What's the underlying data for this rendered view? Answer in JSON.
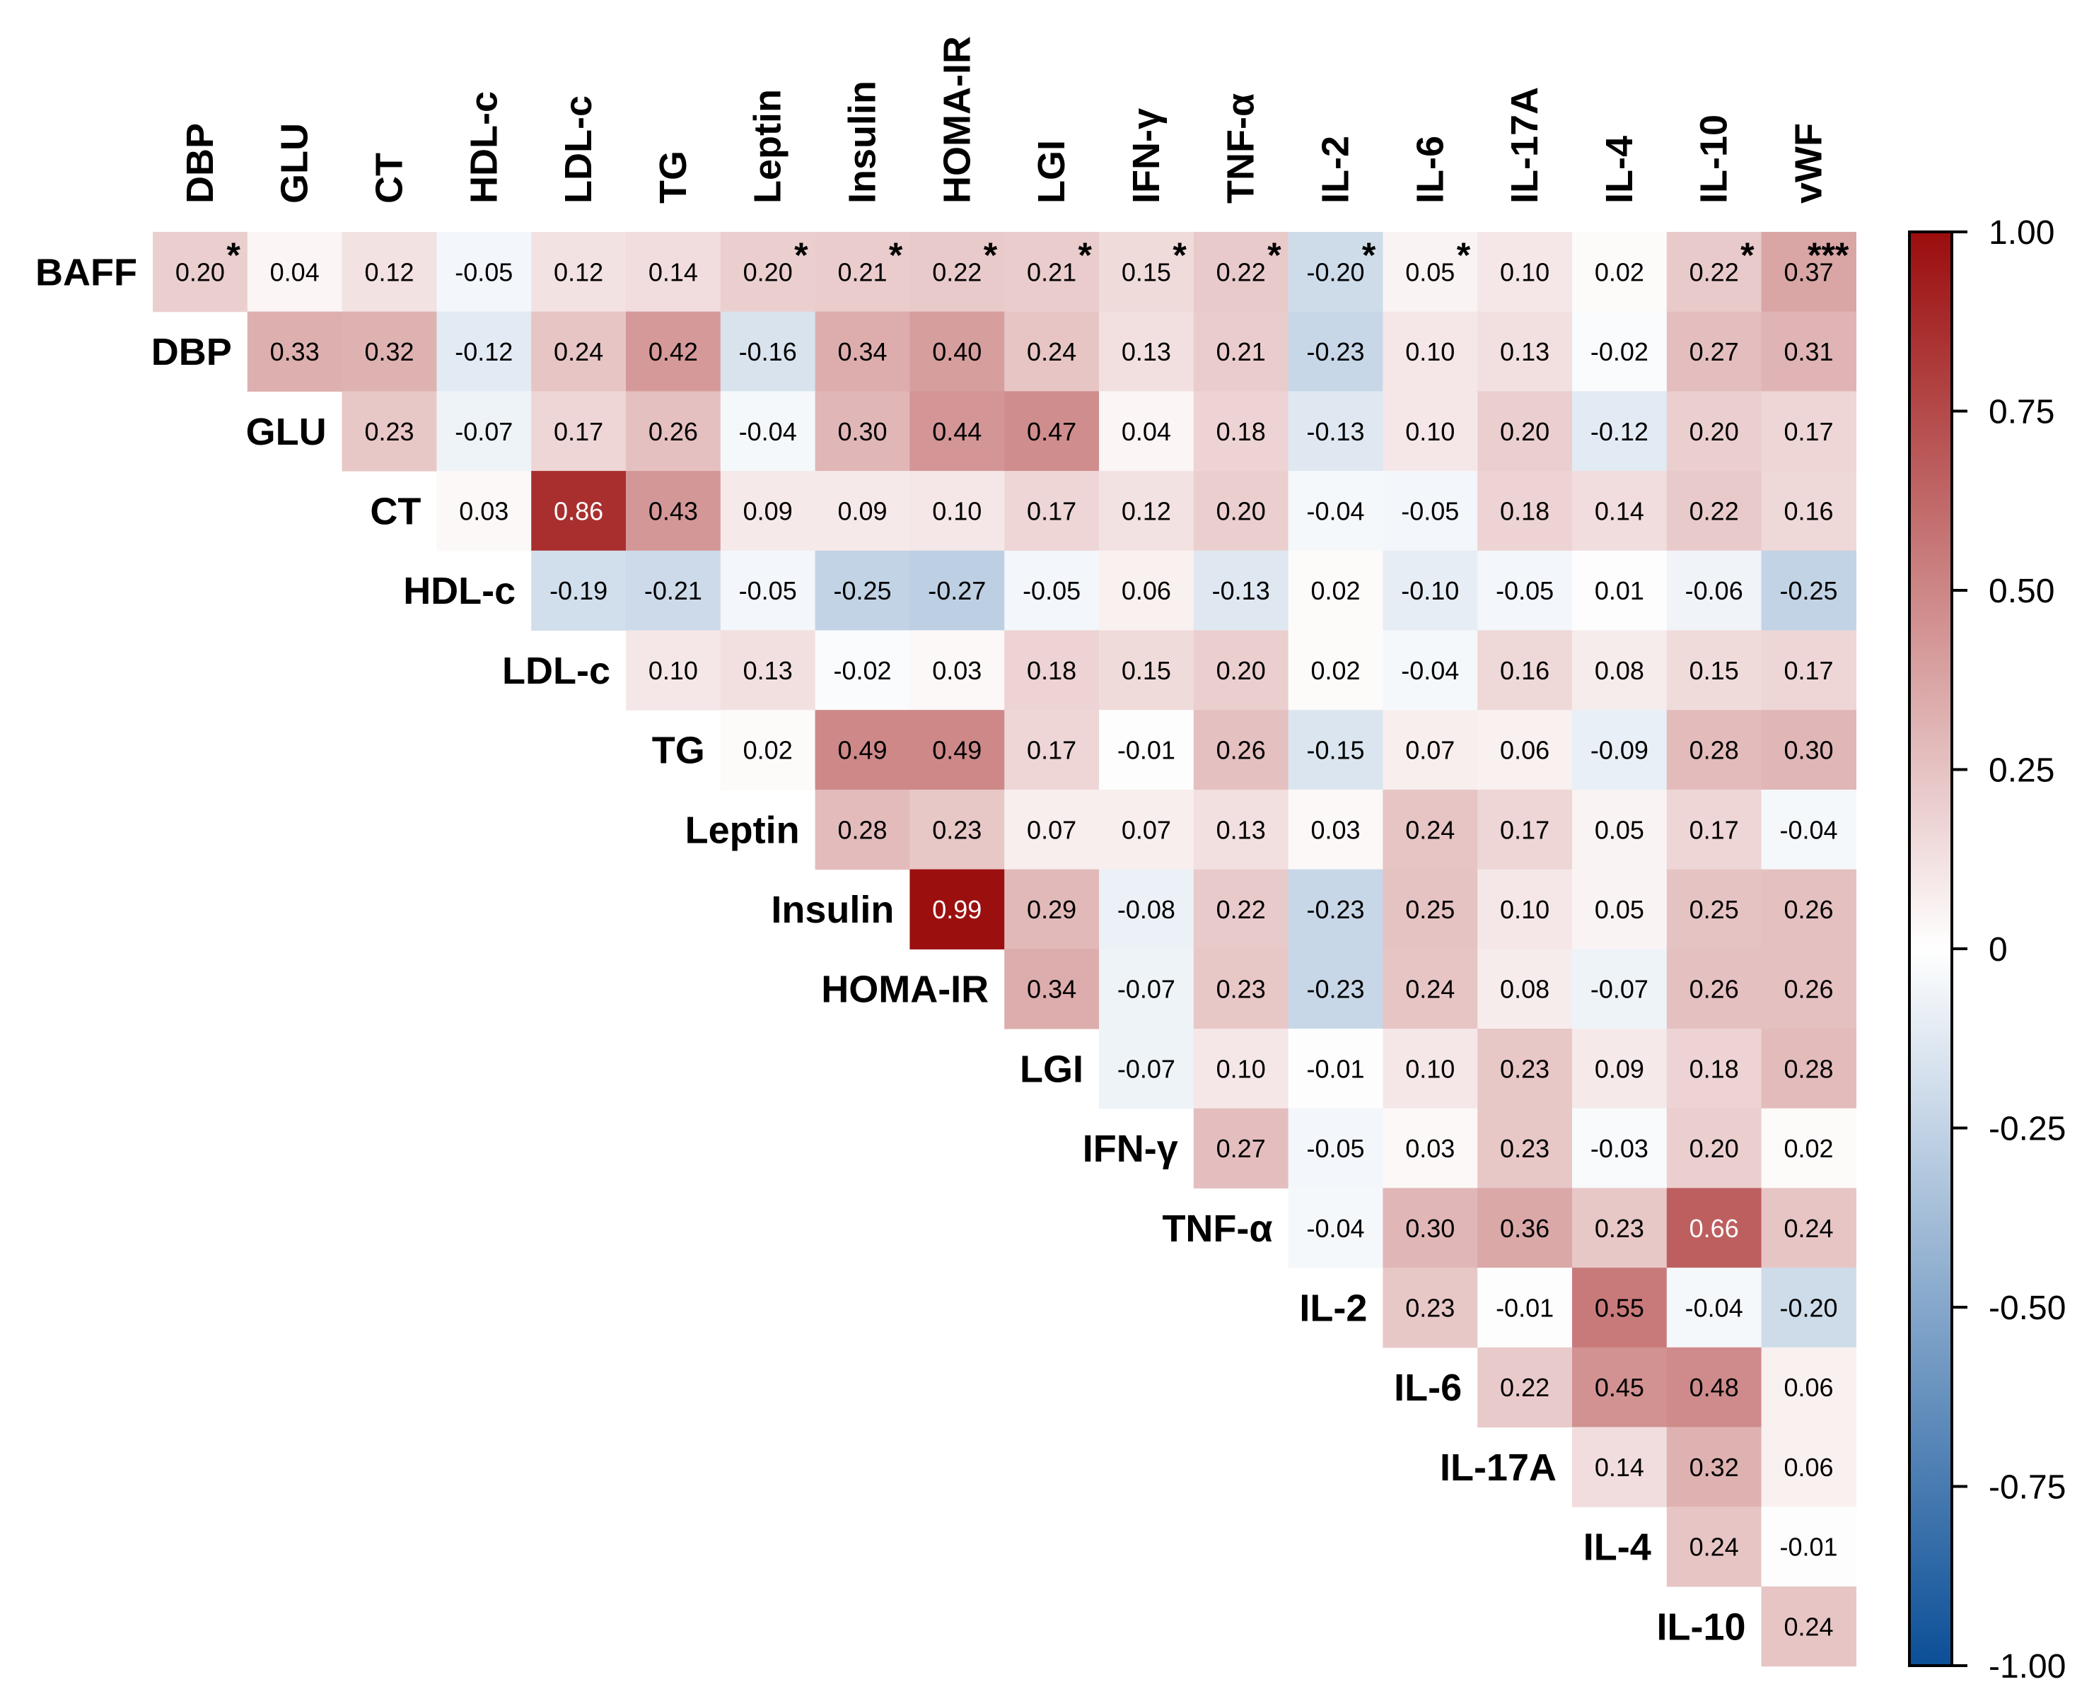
{
  "chart_data": {
    "type": "heatmap",
    "title": "",
    "columns": [
      "DBP",
      "GLU",
      "CT",
      "HDL-c",
      "LDL-c",
      "TG",
      "Leptin",
      "Insulin",
      "HOMA-IR",
      "LGI",
      "IFN-γ",
      "TNF-α",
      "IL-2",
      "IL-6",
      "IL-17A",
      "IL-4",
      "IL-10",
      "vWF"
    ],
    "rows": [
      {
        "label": "BAFF",
        "start": 0,
        "values": [
          "0.20",
          "0.04",
          "0.12",
          "-0.05",
          "0.12",
          "0.14",
          "0.20",
          "0.21",
          "0.22",
          "0.21",
          "0.15",
          "0.22",
          "-0.20",
          "0.05",
          "0.10",
          "0.02",
          "0.22",
          "0.37"
        ],
        "stars": [
          "*",
          "",
          "",
          "",
          "",
          "",
          "*",
          "*",
          "*",
          "*",
          "*",
          "*",
          "*",
          "*",
          "",
          "",
          "*",
          "***"
        ]
      },
      {
        "label": "DBP",
        "start": 1,
        "values": [
          "0.33",
          "0.32",
          "-0.12",
          "0.24",
          "0.42",
          "-0.16",
          "0.34",
          "0.40",
          "0.24",
          "0.13",
          "0.21",
          "-0.23",
          "0.10",
          "0.13",
          "-0.02",
          "0.27",
          "0.31"
        ]
      },
      {
        "label": "GLU",
        "start": 2,
        "values": [
          "0.23",
          "-0.07",
          "0.17",
          "0.26",
          "-0.04",
          "0.30",
          "0.44",
          "0.47",
          "0.04",
          "0.18",
          "-0.13",
          "0.10",
          "0.20",
          "-0.12",
          "0.20",
          "0.17"
        ]
      },
      {
        "label": "CT",
        "start": 3,
        "values": [
          "0.03",
          "0.86",
          "0.43",
          "0.09",
          "0.09",
          "0.10",
          "0.17",
          "0.12",
          "0.20",
          "-0.04",
          "-0.05",
          "0.18",
          "0.14",
          "0.22",
          "0.16"
        ]
      },
      {
        "label": "HDL-c",
        "start": 4,
        "values": [
          "-0.19",
          "-0.21",
          "-0.05",
          "-0.25",
          "-0.27",
          "-0.05",
          "0.06",
          "-0.13",
          "0.02",
          "-0.10",
          "-0.05",
          "0.01",
          "-0.06",
          "-0.25"
        ]
      },
      {
        "label": "LDL-c",
        "start": 5,
        "values": [
          "0.10",
          "0.13",
          "-0.02",
          "0.03",
          "0.18",
          "0.15",
          "0.20",
          "0.02",
          "-0.04",
          "0.16",
          "0.08",
          "0.15",
          "0.17"
        ]
      },
      {
        "label": "TG",
        "start": 6,
        "values": [
          "0.02",
          "0.49",
          "0.49",
          "0.17",
          "-0.01",
          "0.26",
          "-0.15",
          "0.07",
          "0.06",
          "-0.09",
          "0.28",
          "0.30"
        ]
      },
      {
        "label": "Leptin",
        "start": 7,
        "values": [
          "0.28",
          "0.23",
          "0.07",
          "0.07",
          "0.13",
          "0.03",
          "0.24",
          "0.17",
          "0.05",
          "0.17",
          "-0.04"
        ]
      },
      {
        "label": "Insulin",
        "start": 8,
        "values": [
          "0.99",
          "0.29",
          "-0.08",
          "0.22",
          "-0.23",
          "0.25",
          "0.10",
          "0.05",
          "0.25",
          "0.26"
        ]
      },
      {
        "label": "HOMA-IR",
        "start": 9,
        "values": [
          "0.34",
          "-0.07",
          "0.23",
          "-0.23",
          "0.24",
          "0.08",
          "-0.07",
          "0.26",
          "0.26"
        ]
      },
      {
        "label": "LGI",
        "start": 10,
        "values": [
          "-0.07",
          "0.10",
          "-0.01",
          "0.10",
          "0.23",
          "0.09",
          "0.18",
          "0.28"
        ]
      },
      {
        "label": "IFN-γ",
        "start": 11,
        "values": [
          "0.27",
          "-0.05",
          "0.03",
          "0.23",
          "-0.03",
          "0.20",
          "0.02"
        ]
      },
      {
        "label": "TNF-α",
        "start": 12,
        "values": [
          "-0.04",
          "0.30",
          "0.36",
          "0.23",
          "0.66",
          "0.24"
        ]
      },
      {
        "label": "IL-2",
        "start": 13,
        "values": [
          "0.23",
          "-0.01",
          "0.55",
          "-0.04",
          "-0.20"
        ]
      },
      {
        "label": "IL-6",
        "start": 14,
        "values": [
          "0.22",
          "0.45",
          "0.48",
          "0.06"
        ]
      },
      {
        "label": "IL-17A",
        "start": 15,
        "values": [
          "0.14",
          "0.32",
          "0.06"
        ]
      },
      {
        "label": "IL-4",
        "start": 16,
        "values": [
          "0.24",
          "-0.01"
        ]
      },
      {
        "label": "IL-10",
        "start": 17,
        "values": [
          "0.24"
        ]
      }
    ],
    "colorbar": {
      "range": [
        -1.0,
        1.0
      ],
      "ticks": [
        "1.00",
        "0.75",
        "0.50",
        "0.25",
        "0",
        "-0.25",
        "-0.50",
        "-0.75",
        "-1.00"
      ],
      "colors": {
        "negative": "#0b4f97",
        "zero": "#ffffff",
        "positive": "#9b0d0d"
      }
    }
  }
}
